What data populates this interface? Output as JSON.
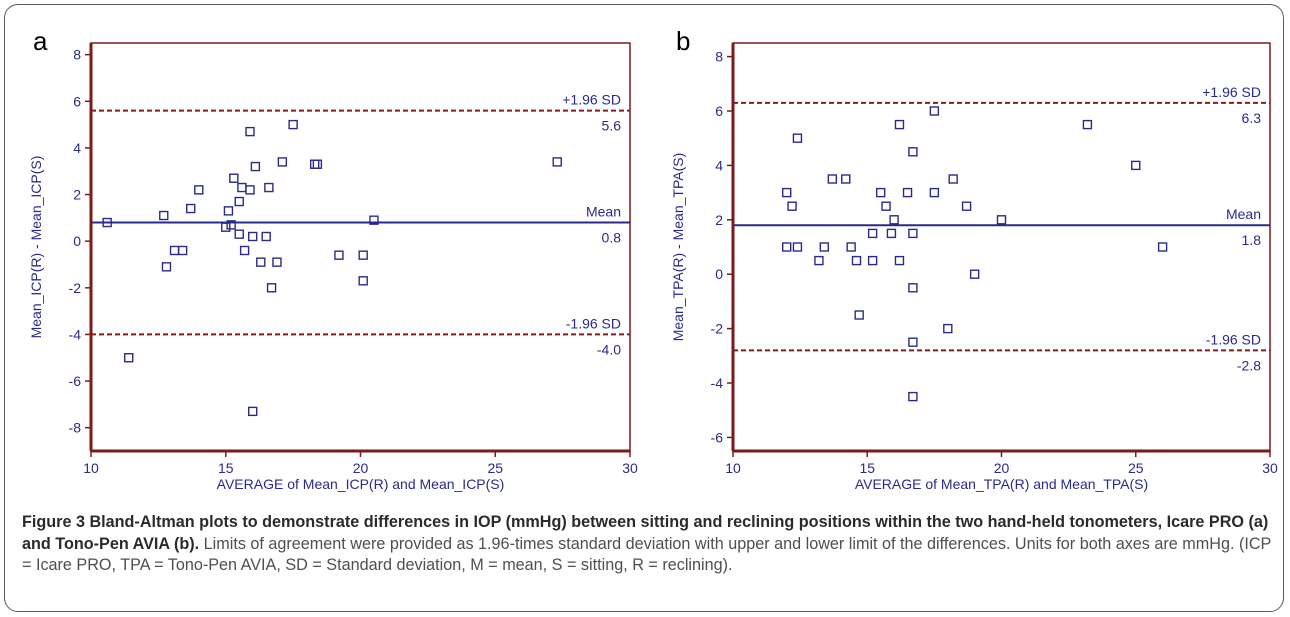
{
  "chart_data": [
    {
      "type": "scatter",
      "panel_label": "a",
      "xlabel": "AVERAGE of Mean_ICP(R) and Mean_ICP(S)",
      "ylabel": "Mean_ICP(R) - Mean_ICP(S)",
      "xlim": [
        10,
        30
      ],
      "ylim": [
        -9,
        8.5
      ],
      "xticks": [
        10,
        15,
        20,
        25,
        30
      ],
      "yticks": [
        -8,
        -6,
        -4,
        -2,
        0,
        2,
        4,
        6,
        8
      ],
      "points": [
        {
          "x": 10.6,
          "y": 0.8
        },
        {
          "x": 11.4,
          "y": -5.0
        },
        {
          "x": 12.7,
          "y": 1.1
        },
        {
          "x": 12.8,
          "y": -1.1
        },
        {
          "x": 13.1,
          "y": -0.4
        },
        {
          "x": 13.4,
          "y": -0.4
        },
        {
          "x": 13.7,
          "y": 1.4
        },
        {
          "x": 14.0,
          "y": 2.2
        },
        {
          "x": 15.0,
          "y": 0.6
        },
        {
          "x": 15.1,
          "y": 1.3
        },
        {
          "x": 15.2,
          "y": 0.7
        },
        {
          "x": 15.3,
          "y": 2.7
        },
        {
          "x": 15.5,
          "y": 1.7
        },
        {
          "x": 15.5,
          "y": 0.3
        },
        {
          "x": 15.6,
          "y": 2.3
        },
        {
          "x": 15.7,
          "y": -0.4
        },
        {
          "x": 15.9,
          "y": 2.2
        },
        {
          "x": 15.9,
          "y": 4.7
        },
        {
          "x": 16.0,
          "y": 0.2
        },
        {
          "x": 16.0,
          "y": -7.3
        },
        {
          "x": 16.1,
          "y": 3.2
        },
        {
          "x": 16.3,
          "y": -0.9
        },
        {
          "x": 16.5,
          "y": 0.2
        },
        {
          "x": 16.6,
          "y": 2.3
        },
        {
          "x": 16.7,
          "y": -2.0
        },
        {
          "x": 16.9,
          "y": -0.9
        },
        {
          "x": 17.1,
          "y": 3.4
        },
        {
          "x": 17.5,
          "y": 5.0
        },
        {
          "x": 18.3,
          "y": 3.3
        },
        {
          "x": 18.4,
          "y": 3.3
        },
        {
          "x": 19.2,
          "y": -0.6
        },
        {
          "x": 20.1,
          "y": -0.6
        },
        {
          "x": 20.1,
          "y": -1.7
        },
        {
          "x": 20.5,
          "y": 0.9
        },
        {
          "x": 27.3,
          "y": 3.4
        }
      ],
      "mean": 0.8,
      "upper_loa": 5.6,
      "lower_loa": -4.0,
      "labels": {
        "mean_text": "Mean",
        "mean_value": "0.8",
        "upper_text": "+1.96 SD",
        "upper_value": "5.6",
        "lower_text": "-1.96 SD",
        "lower_value": "-4.0"
      }
    },
    {
      "type": "scatter",
      "panel_label": "b",
      "xlabel": "AVERAGE of Mean_TPA(R) and Mean_TPA(S)",
      "ylabel": "Mean_TPA(R) - Mean_TPA(S)",
      "xlim": [
        10,
        30
      ],
      "ylim": [
        -6.5,
        8.5
      ],
      "xticks": [
        10,
        15,
        20,
        25,
        30
      ],
      "yticks": [
        -6,
        -4,
        -2,
        0,
        2,
        4,
        6,
        8
      ],
      "points": [
        {
          "x": 12.0,
          "y": 3.0
        },
        {
          "x": 12.0,
          "y": 1.0
        },
        {
          "x": 12.2,
          "y": 2.5
        },
        {
          "x": 12.4,
          "y": 5.0
        },
        {
          "x": 12.4,
          "y": 1.0
        },
        {
          "x": 13.2,
          "y": 0.5
        },
        {
          "x": 13.4,
          "y": 1.0
        },
        {
          "x": 13.7,
          "y": 3.5
        },
        {
          "x": 14.2,
          "y": 3.5
        },
        {
          "x": 14.4,
          "y": 1.0
        },
        {
          "x": 14.6,
          "y": 0.5
        },
        {
          "x": 14.7,
          "y": -1.5
        },
        {
          "x": 15.2,
          "y": 1.5
        },
        {
          "x": 15.2,
          "y": 0.5
        },
        {
          "x": 15.5,
          "y": 3.0
        },
        {
          "x": 15.7,
          "y": 2.5
        },
        {
          "x": 15.9,
          "y": 1.5
        },
        {
          "x": 16.0,
          "y": 2.0
        },
        {
          "x": 16.2,
          "y": 5.5
        },
        {
          "x": 16.2,
          "y": 0.5
        },
        {
          "x": 16.5,
          "y": 3.0
        },
        {
          "x": 16.7,
          "y": 4.5
        },
        {
          "x": 16.7,
          "y": 1.5
        },
        {
          "x": 16.7,
          "y": -0.5
        },
        {
          "x": 16.7,
          "y": -2.5
        },
        {
          "x": 16.7,
          "y": -4.5
        },
        {
          "x": 17.5,
          "y": 6.0
        },
        {
          "x": 17.5,
          "y": 3.0
        },
        {
          "x": 18.0,
          "y": -2.0
        },
        {
          "x": 18.2,
          "y": 3.5
        },
        {
          "x": 18.7,
          "y": 2.5
        },
        {
          "x": 19.0,
          "y": 0.0
        },
        {
          "x": 20.0,
          "y": 2.0
        },
        {
          "x": 23.2,
          "y": 5.5
        },
        {
          "x": 25.0,
          "y": 4.0
        },
        {
          "x": 26.0,
          "y": 1.0
        }
      ],
      "mean": 1.8,
      "upper_loa": 6.3,
      "lower_loa": -2.8,
      "labels": {
        "mean_text": "Mean",
        "mean_value": "1.8",
        "upper_text": "+1.96 SD",
        "upper_value": "6.3",
        "lower_text": "-1.96 SD",
        "lower_value": "-2.8"
      }
    }
  ],
  "colors": {
    "frame": "#7a1a1a",
    "points": "#2a2a8c",
    "mean_line": "#2a2a8c",
    "loa_line": "#8b1a1a",
    "text": "#2a2a8c"
  },
  "caption": {
    "title": "Figure 3 Bland-Altman plots to demonstrate differences in IOP (mmHg) between sitting and reclining positions within the two hand-held tonometers, Icare PRO (a) and Tono-Pen AVIA (b).",
    "body": " Limits of agreement were provided as 1.96-times standard deviation with upper and lower limit of the differences. Units for both axes are mmHg. (ICP = Icare PRO, TPA = Tono-Pen AVIA, SD = Standard deviation, M = mean, S = sitting, R = reclining)."
  }
}
